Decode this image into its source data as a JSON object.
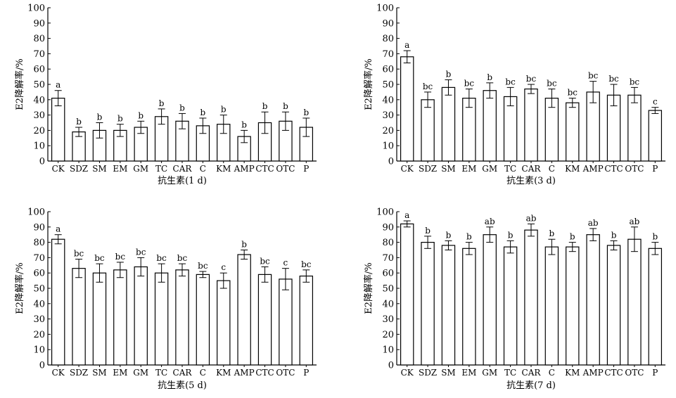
{
  "chart_data": [
    {
      "type": "bar",
      "categories": [
        "CK",
        "SDZ",
        "SM",
        "EM",
        "GM",
        "TC",
        "CAR",
        "C",
        "KM",
        "AMP",
        "CTC",
        "OTC",
        "P"
      ],
      "values": [
        41,
        19,
        20,
        20,
        22,
        29,
        26,
        23,
        24,
        16,
        25,
        26,
        22
      ],
      "errors": [
        5,
        3,
        5,
        4,
        4,
        5,
        5,
        5,
        6,
        4,
        7,
        6,
        6
      ],
      "letters": [
        "a",
        "b",
        "b",
        "b",
        "b",
        "b",
        "b",
        "b",
        "b",
        "b",
        "b",
        "b",
        "b"
      ],
      "xlabel": "抗生素(1 d)",
      "ylabel": "E2降解率/%",
      "ylim": [
        0,
        100
      ],
      "yticks": [
        0,
        10,
        20,
        30,
        40,
        50,
        60,
        70,
        80,
        90,
        100
      ]
    },
    {
      "type": "bar",
      "categories": [
        "CK",
        "SDZ",
        "SM",
        "EM",
        "GM",
        "TC",
        "CAR",
        "C",
        "KM",
        "AMP",
        "CTC",
        "OTC",
        "P"
      ],
      "values": [
        68,
        40,
        48,
        41,
        46,
        42,
        47,
        41,
        38,
        45,
        43,
        43,
        33
      ],
      "errors": [
        4,
        5,
        5,
        6,
        5,
        6,
        3,
        6,
        3,
        7,
        7,
        5,
        2
      ],
      "letters": [
        "a",
        "bc",
        "b",
        "bc",
        "b",
        "bc",
        "bc",
        "bc",
        "bc",
        "bc",
        "bc",
        "bc",
        "c"
      ],
      "xlabel": "抗生素(3 d)",
      "ylabel": "E2降解率/%",
      "ylim": [
        0,
        100
      ],
      "yticks": [
        0,
        10,
        20,
        30,
        40,
        50,
        60,
        70,
        80,
        90,
        100
      ]
    },
    {
      "type": "bar",
      "categories": [
        "CK",
        "SDZ",
        "SM",
        "EM",
        "GM",
        "TC",
        "CAR",
        "C",
        "KM",
        "AMP",
        "CTC",
        "OTC",
        "P"
      ],
      "values": [
        82,
        63,
        60,
        62,
        64,
        60,
        62,
        59,
        55,
        72,
        59,
        56,
        58
      ],
      "errors": [
        3,
        6,
        6,
        5,
        6,
        6,
        4,
        2,
        5,
        3,
        5,
        7,
        4
      ],
      "letters": [
        "a",
        "bc",
        "bc",
        "bc",
        "bc",
        "bc",
        "bc",
        "bc",
        "c",
        "b",
        "bc",
        "c",
        "bc"
      ],
      "xlabel": "抗生素(5 d)",
      "ylabel": "E2降解率/%",
      "ylim": [
        0,
        100
      ],
      "yticks": [
        0,
        10,
        20,
        30,
        40,
        50,
        60,
        70,
        80,
        90,
        100
      ]
    },
    {
      "type": "bar",
      "categories": [
        "CK",
        "SDZ",
        "SM",
        "EM",
        "GM",
        "TC",
        "CAR",
        "C",
        "KM",
        "AMP",
        "CTC",
        "OTC",
        "P"
      ],
      "values": [
        92,
        80,
        78,
        76,
        85,
        77,
        88,
        77,
        77,
        85,
        78,
        82,
        76
      ],
      "errors": [
        2,
        4,
        3,
        4,
        5,
        4,
        4,
        5,
        3,
        4,
        3,
        8,
        4
      ],
      "letters": [
        "a",
        "b",
        "b",
        "b",
        "ab",
        "b",
        "ab",
        "b",
        "b",
        "ab",
        "b",
        "ab",
        "b"
      ],
      "xlabel": "抗生素(7 d)",
      "ylabel": "E2降解率/%",
      "ylim": [
        0,
        100
      ],
      "yticks": [
        0,
        10,
        20,
        30,
        40,
        50,
        60,
        70,
        80,
        90,
        100
      ]
    }
  ]
}
